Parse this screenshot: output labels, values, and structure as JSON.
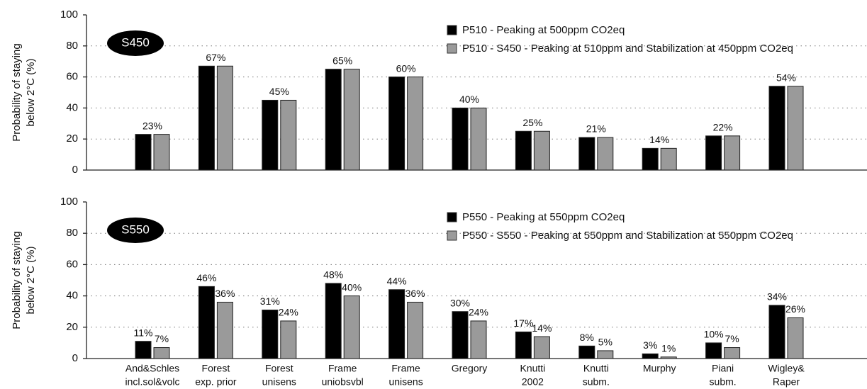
{
  "chart_data": [
    {
      "type": "bar",
      "annotation": "S450",
      "ylabel": [
        "Probability of staying",
        "below 2°C (%)"
      ],
      "ylim": [
        0,
        100
      ],
      "yticks": [
        0,
        20,
        40,
        60,
        80,
        100
      ],
      "grid": true,
      "legend": "upper right",
      "series": [
        {
          "name": "P510 - Peaking at 500ppm CO2eq",
          "color": "#000000",
          "values": [
            23,
            67,
            45,
            65,
            60,
            40,
            25,
            21,
            14,
            22,
            54
          ],
          "value_labels": [
            "23%",
            "67%",
            "45%",
            "65%",
            "60%",
            "40%",
            "25%",
            "21%",
            "14%",
            "22%",
            "54%"
          ]
        },
        {
          "name": "P510 - S450 - Peaking at 510ppm and Stabilization at 450ppm CO2eq",
          "color": "#9a9a9a",
          "values": [
            23,
            67,
            45,
            65,
            60,
            40,
            25,
            21,
            14,
            22,
            54
          ]
        }
      ]
    },
    {
      "type": "bar",
      "annotation": "S550",
      "ylabel": [
        "Probability of staying",
        "below 2°C (%)"
      ],
      "categories": [
        [
          "And&Schles",
          "incl.sol&volc"
        ],
        [
          "Forest",
          "exp. prior"
        ],
        [
          "Forest",
          "unisens"
        ],
        [
          "Frame",
          "uniobsvbl"
        ],
        [
          "Frame",
          "unisens"
        ],
        [
          "Gregory"
        ],
        [
          "Knutti",
          "2002"
        ],
        [
          "Knutti",
          "subm."
        ],
        [
          "Murphy"
        ],
        [
          "Piani",
          "subm."
        ],
        [
          "Wigley&",
          "Raper"
        ]
      ],
      "ylim": [
        0,
        100
      ],
      "yticks": [
        0,
        20,
        40,
        60,
        80,
        100
      ],
      "grid": true,
      "legend": "upper right",
      "series": [
        {
          "name": "P550 - Peaking at 550ppm CO2eq",
          "color": "#000000",
          "values": [
            11,
            46,
            31,
            48,
            44,
            30,
            17,
            8,
            3,
            10,
            34
          ],
          "value_labels": [
            "11%",
            "46%",
            "31%",
            "48%",
            "44%",
            "30%",
            "17%",
            "8%",
            "3%",
            "10%",
            "34%"
          ]
        },
        {
          "name": "P550 - S550 - Peaking at 550ppm and Stabilization at 550ppm CO2eq",
          "color": "#9a9a9a",
          "values": [
            7,
            36,
            24,
            40,
            36,
            24,
            14,
            5,
            1,
            7,
            26
          ],
          "value_labels": [
            "7%",
            "36%",
            "24%",
            "40%",
            "36%",
            "24%",
            "14%",
            "5%",
            "1%",
            "7%",
            "26%"
          ]
        }
      ]
    }
  ]
}
